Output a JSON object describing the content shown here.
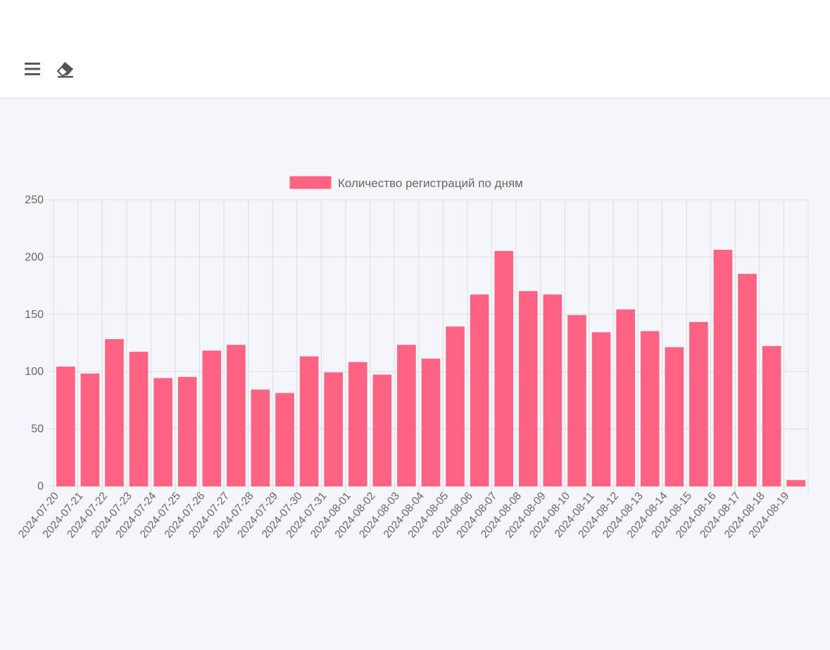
{
  "toolbar": {
    "menu_icon": "hamburger-menu-icon",
    "eraser_icon": "eraser-icon"
  },
  "colors": {
    "bar": "#ff6384",
    "bar_border": "#ff6384",
    "grid": "#dcdde0",
    "text": "#666666"
  },
  "chart_data": {
    "type": "bar",
    "legend": {
      "label": "Количество регистраций по дням",
      "position": "top"
    },
    "categories": [
      "2024-07-20",
      "2024-07-21",
      "2024-07-22",
      "2024-07-23",
      "2024-07-24",
      "2024-07-25",
      "2024-07-26",
      "2024-07-27",
      "2024-07-28",
      "2024-07-29",
      "2024-07-30",
      "2024-07-31",
      "2024-08-01",
      "2024-08-02",
      "2024-08-03",
      "2024-08-04",
      "2024-08-05",
      "2024-08-06",
      "2024-08-07",
      "2024-08-08",
      "2024-08-09",
      "2024-08-10",
      "2024-08-11",
      "2024-08-12",
      "2024-08-13",
      "2024-08-14",
      "2024-08-15",
      "2024-08-16",
      "2024-08-17",
      "2024-08-18",
      "2024-08-19"
    ],
    "series": [
      {
        "name": "Количество регистраций по дням",
        "values": [
          104,
          98,
          128,
          117,
          94,
          95,
          118,
          123,
          84,
          81,
          113,
          99,
          108,
          97,
          123,
          111,
          139,
          167,
          205,
          170,
          167,
          149,
          134,
          154,
          135,
          121,
          143,
          206,
          185,
          122,
          5
        ]
      }
    ],
    "ylim": [
      0,
      250
    ],
    "yticks": [
      "0",
      "50",
      "100",
      "150",
      "200",
      "250"
    ],
    "grid": true
  }
}
